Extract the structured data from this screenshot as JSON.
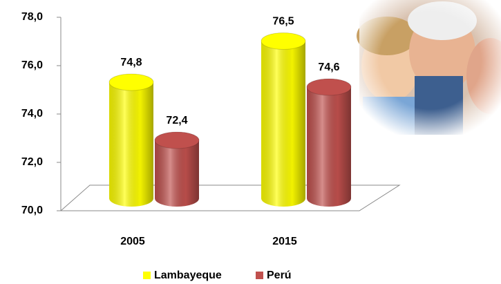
{
  "chart_data": {
    "type": "bar",
    "categories": [
      "2005",
      "2015"
    ],
    "series": [
      {
        "name": "Lambayeque",
        "color": "#ffff00",
        "values": [
          74.8,
          76.5
        ],
        "value_labels": [
          "74,8",
          "76,5"
        ]
      },
      {
        "name": "Perú",
        "color": "#c0504d",
        "values": [
          72.4,
          74.6
        ],
        "value_labels": [
          "72,4",
          "74,6"
        ]
      }
    ],
    "ylim": [
      70,
      78
    ],
    "yticks": [
      {
        "value": 70,
        "label": "70,0"
      },
      {
        "value": 72,
        "label": "72,0"
      },
      {
        "value": 74,
        "label": "74,0"
      },
      {
        "value": 76,
        "label": "76,0"
      },
      {
        "value": 78,
        "label": "78,0"
      }
    ],
    "legend": "bottom"
  }
}
